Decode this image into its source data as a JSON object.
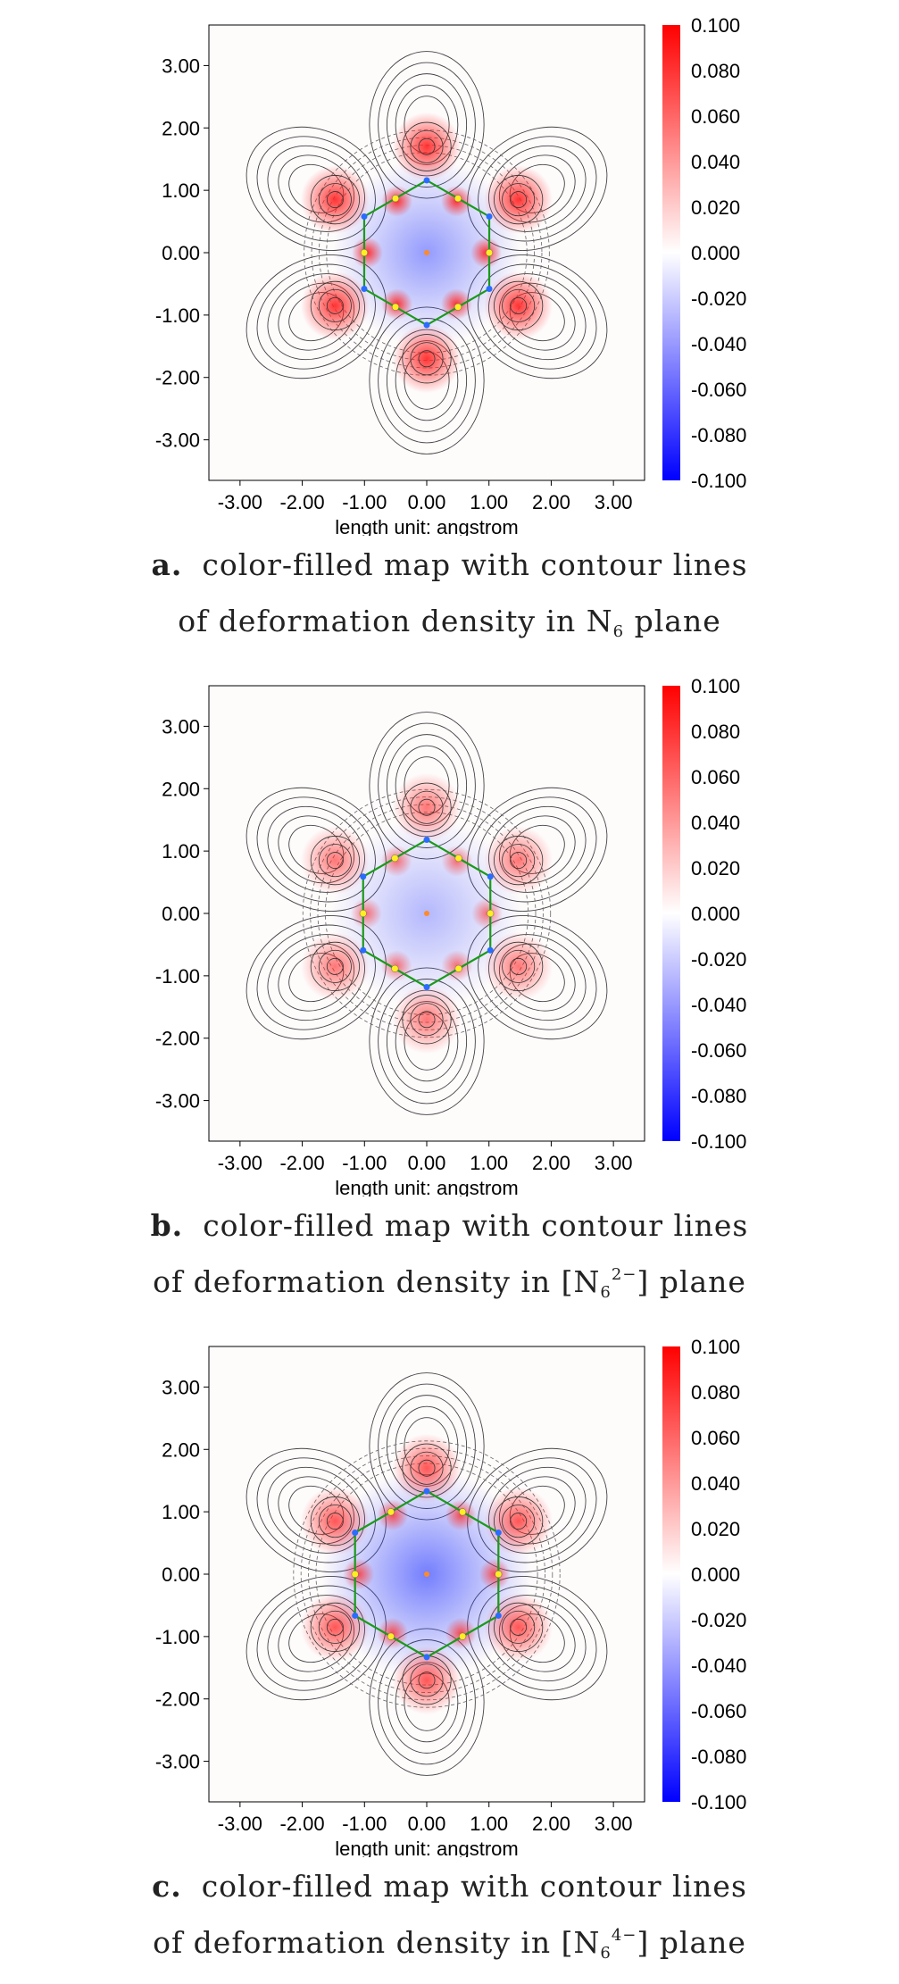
{
  "chart_data": [
    {
      "type": "heatmap",
      "panel": "a",
      "caption_prefix": "a.",
      "caption_line1": "color-filled map with contour lines",
      "caption_line2_pre": "of deformation density in N",
      "caption_sub": "6",
      "caption_sup": "",
      "caption_line2_post": " plane",
      "xlabel": "length unit: angstrom",
      "xticks": [
        "-3.00",
        "-2.00",
        "-1.00",
        "0.00",
        "1.00",
        "2.00",
        "3.00"
      ],
      "yticks": [
        "3.00",
        "2.00",
        "1.00",
        "0.00",
        "-1.00",
        "-2.00",
        "-3.00"
      ],
      "xlim": [
        -3.5,
        3.5
      ],
      "ylim": [
        -3.65,
        3.65
      ],
      "colorbar_ticks": [
        "0.100",
        "0.080",
        "0.060",
        "0.040",
        "0.020",
        "0.000",
        "-0.020",
        "-0.040",
        "-0.060",
        "-0.080",
        "-0.100"
      ],
      "colorbar_range": [
        -0.1,
        0.1
      ],
      "colormap": [
        "#0000ff",
        "#ffffff",
        "#ff0000"
      ],
      "atom_ring_radius": 1.16,
      "lobe_intensity": 0.9,
      "depletion_intensity": 0.5
    },
    {
      "type": "heatmap",
      "panel": "b",
      "caption_prefix": "b.",
      "caption_line1": "color-filled map with contour lines",
      "caption_line2_pre": "of deformation density in [N",
      "caption_sub": "6",
      "caption_sup": "2−",
      "caption_line2_post": "] plane",
      "xlabel": "length unit: angstrom",
      "xticks": [
        "-3.00",
        "-2.00",
        "-1.00",
        "0.00",
        "1.00",
        "2.00",
        "3.00"
      ],
      "yticks": [
        "3.00",
        "2.00",
        "1.00",
        "0.00",
        "-1.00",
        "-2.00",
        "-3.00"
      ],
      "xlim": [
        -3.5,
        3.5
      ],
      "ylim": [
        -3.65,
        3.65
      ],
      "colorbar_ticks": [
        "0.100",
        "0.080",
        "0.060",
        "0.040",
        "0.020",
        "0.000",
        "-0.020",
        "-0.040",
        "-0.060",
        "-0.080",
        "-0.100"
      ],
      "colorbar_range": [
        -0.1,
        0.1
      ],
      "colormap": [
        "#0000ff",
        "#ffffff",
        "#ff0000"
      ],
      "atom_ring_radius": 1.18,
      "lobe_intensity": 0.6,
      "depletion_intensity": 0.35
    },
    {
      "type": "heatmap",
      "panel": "c",
      "caption_prefix": "c.",
      "caption_line1": "color-filled map with contour lines",
      "caption_line2_pre": "of deformation density in [N",
      "caption_sub": "6",
      "caption_sup": "4−",
      "caption_line2_post": "] plane",
      "xlabel": "length unit: angstrom",
      "xticks": [
        "-3.00",
        "-2.00",
        "-1.00",
        "0.00",
        "1.00",
        "2.00",
        "3.00"
      ],
      "yticks": [
        "3.00",
        "2.00",
        "1.00",
        "0.00",
        "-1.00",
        "-2.00",
        "-3.00"
      ],
      "xlim": [
        -3.5,
        3.5
      ],
      "ylim": [
        -3.65,
        3.65
      ],
      "colorbar_ticks": [
        "0.100",
        "0.080",
        "0.060",
        "0.040",
        "0.020",
        "0.000",
        "-0.020",
        "-0.040",
        "-0.060",
        "-0.080",
        "-0.100"
      ],
      "colorbar_range": [
        -0.1,
        0.1
      ],
      "colormap": [
        "#0000ff",
        "#ffffff",
        "#ff0000"
      ],
      "atom_ring_radius": 1.33,
      "lobe_intensity": 0.75,
      "depletion_intensity": 0.65
    }
  ]
}
